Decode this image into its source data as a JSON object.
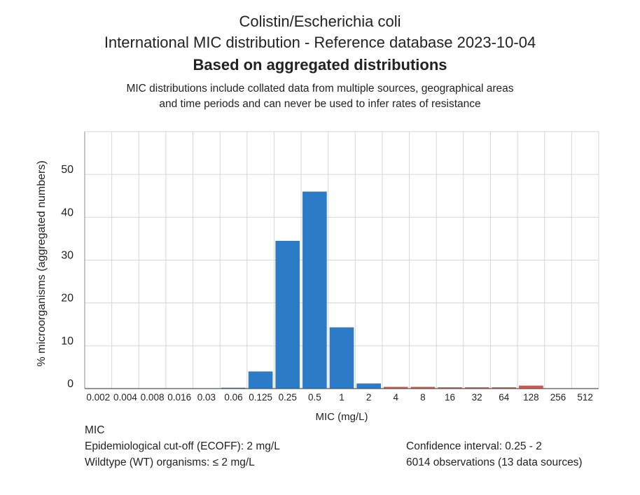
{
  "title": "Colistin/Escherichia coli",
  "subtitle": "International MIC distribution - Reference database 2023-10-04",
  "heading": "Based on aggregated distributions",
  "note_line1": "MIC distributions include collated data from multiple sources, geographical areas",
  "note_line2": "and time periods and can never be used to infer rates of resistance",
  "footer": {
    "section_label": "MIC",
    "ecoff": "Epidemiological cut-off (ECOFF): 2 mg/L",
    "wildtype": "Wildtype (WT) organisms: ≤ 2 mg/L",
    "confidence": "Confidence interval: 0.25 - 2",
    "observations": "6014 observations (13 data sources)"
  },
  "chart_data": {
    "type": "bar",
    "xlabel": "MIC (mg/L)",
    "ylabel": "% microorganisms (aggregated numbers)",
    "ylim": [
      0,
      60
    ],
    "yticks": [
      0,
      10,
      20,
      30,
      40,
      50
    ],
    "grid": true,
    "categories": [
      "0.002",
      "0.004",
      "0.008",
      "0.016",
      "0.03",
      "0.06",
      "0.125",
      "0.25",
      "0.5",
      "1",
      "2",
      "4",
      "8",
      "16",
      "32",
      "64",
      "128",
      "256",
      "512"
    ],
    "values": [
      0,
      0,
      0,
      0,
      0,
      0.2,
      4.0,
      34.5,
      46.0,
      14.3,
      1.2,
      0.4,
      0.4,
      0.3,
      0.3,
      0.3,
      0.7,
      0,
      0
    ],
    "colors": {
      "wildtype": "#2b7bc6",
      "non_wildtype": "#d9534f"
    },
    "ecoff": "2"
  }
}
